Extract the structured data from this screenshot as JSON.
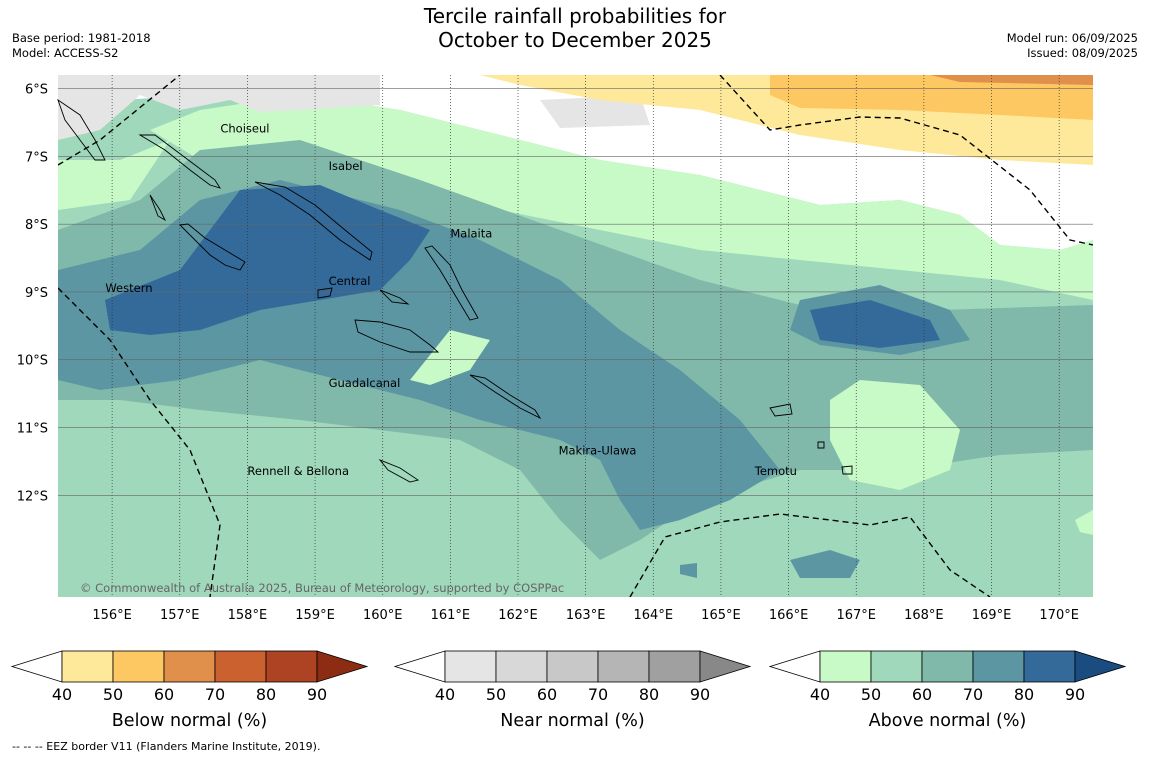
{
  "header": {
    "title_line1": "Tercile rainfall probabilities for",
    "title_line2": "October to December 2025",
    "base_period": "Base period: 1981-2018",
    "model": "Model: ACCESS-S2",
    "model_run": "Model run: 06/09/2025",
    "issued": "Issued: 08/09/2025"
  },
  "map": {
    "lat_labels": [
      "6°S",
      "7°S",
      "8°S",
      "9°S",
      "10°S",
      "11°S",
      "12°S"
    ],
    "lon_labels": [
      "156°E",
      "157°E",
      "158°E",
      "159°E",
      "160°E",
      "161°E",
      "162°E",
      "163°E",
      "164°E",
      "165°E",
      "166°E",
      "167°E",
      "168°E",
      "169°E",
      "170°E"
    ],
    "lat_values": [
      -6,
      -7,
      -8,
      -9,
      -10,
      -11,
      -12
    ],
    "lon_values": [
      156,
      157,
      158,
      159,
      160,
      161,
      162,
      163,
      164,
      165,
      166,
      167,
      168,
      169,
      170
    ],
    "extent": {
      "lon_min": 155.2,
      "lon_max": 170.5,
      "lat_min": -13.5,
      "lat_max": -5.8
    },
    "regions": [
      {
        "name": "Choiseul",
        "lon": 157.6,
        "lat": -6.65
      },
      {
        "name": "Isabel",
        "lon": 159.2,
        "lat": -7.2
      },
      {
        "name": "Malaita",
        "lon": 161.0,
        "lat": -8.2
      },
      {
        "name": "Western",
        "lon": 155.9,
        "lat": -9.0
      },
      {
        "name": "Central",
        "lon": 159.2,
        "lat": -8.9
      },
      {
        "name": "Guadalcanal",
        "lon": 159.2,
        "lat": -10.4
      },
      {
        "name": "Makira-Ulawa",
        "lon": 162.6,
        "lat": -11.4
      },
      {
        "name": "Rennell & Bellona",
        "lon": 158.0,
        "lat": -11.7
      },
      {
        "name": "Temotu",
        "lon": 165.5,
        "lat": -11.7
      }
    ],
    "copyright": "© Commonwealth of Australia 2025, Bureau of Meteorology, supported by COSPPac"
  },
  "legends": [
    {
      "label": "Below normal (%)",
      "ticks": [
        "40",
        "50",
        "60",
        "70",
        "80",
        "90"
      ],
      "colors": [
        "#ffffff",
        "#fee99a",
        "#fdc862",
        "#e0904a",
        "#cc6130",
        "#ad4323",
        "#8c2d13"
      ]
    },
    {
      "label": "Near normal (%)",
      "ticks": [
        "40",
        "50",
        "60",
        "70",
        "80",
        "90"
      ],
      "colors": [
        "#ffffff",
        "#e5e5e5",
        "#d8d8d8",
        "#c8c8c8",
        "#b5b5b5",
        "#a0a0a0",
        "#888888"
      ]
    },
    {
      "label": "Above normal (%)",
      "ticks": [
        "40",
        "50",
        "60",
        "70",
        "80",
        "90"
      ],
      "colors": [
        "#ffffff",
        "#c8fac8",
        "#a0d8bb",
        "#80b8aa",
        "#5c96a3",
        "#336a99",
        "#1a4c80"
      ]
    }
  ],
  "footnote": "--  --  -- EEZ border V11 (Flanders Marine Institute, 2019)."
}
